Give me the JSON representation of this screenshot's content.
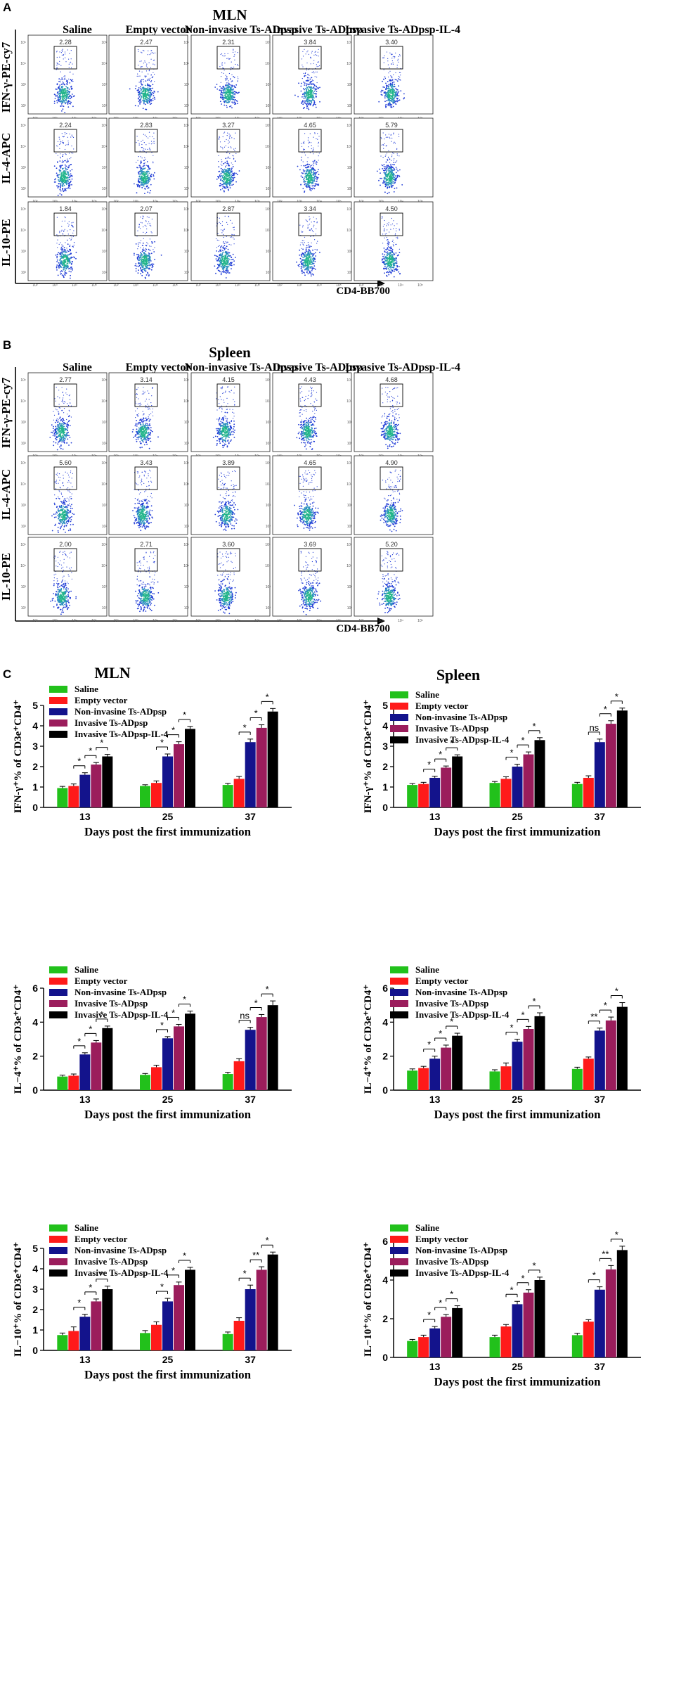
{
  "colors": {
    "saline": "#22c11b",
    "empty_vector": "#ff1a1a",
    "non_invasive": "#13138c",
    "invasive": "#9b1d5c",
    "invasive_il4": "#000000",
    "dot_core": "#22b58a",
    "dot_edge": "#1f3bd6"
  },
  "flow": {
    "A": {
      "panel_label": "A",
      "title": "MLN",
      "columns": [
        "Saline",
        "Empty vector",
        "Non-invasive Ts-ADpsp",
        "Invasive Ts-ADpsp",
        "Invasive Ts-ADpsp-IL-4"
      ],
      "rows": [
        "IFN-γ-PE-cy7",
        "IL-4-APC",
        "IL-10-PE"
      ],
      "x_axis_label": "CD4-BB700",
      "gate_values": [
        [
          "2.28",
          "2.47",
          "2.31",
          "3.84",
          "3.40"
        ],
        [
          "2.24",
          "2.83",
          "3.27",
          "4.65",
          "5.79"
        ],
        [
          "1.84",
          "2.07",
          "2.87",
          "3.34",
          "4.50"
        ]
      ]
    },
    "B": {
      "panel_label": "B",
      "title": "Spleen",
      "columns": [
        "Saline",
        "Empty vector",
        "Non-invasive Ts-ADpsp",
        "Invasive Ts-ADpsp",
        "Invasive Ts-ADpsp-IL-4"
      ],
      "rows": [
        "IFN-γ-PE-cy7",
        "IL-4-APC",
        "IL-10-PE"
      ],
      "x_axis_label": "CD4-BB700",
      "gate_values": [
        [
          "2.77",
          "3.14",
          "4.15",
          "4.43",
          "4.68"
        ],
        [
          "5.60",
          "3.43",
          "3.89",
          "4.65",
          "4.90"
        ],
        [
          "2.00",
          "2.71",
          "3.60",
          "3.69",
          "5.20"
        ]
      ]
    },
    "tick_labels": [
      "10²",
      "10³",
      "10⁴",
      "10⁵"
    ]
  },
  "panel_c": {
    "panel_label": "C",
    "titles": [
      "MLN",
      "Spleen"
    ],
    "legend": [
      "Saline",
      "Empty vector",
      "Non-invasine Ts-ADpsp",
      "Invasive Ts-ADpsp",
      "Invasive Ts-ADpsp-IL-4"
    ]
  },
  "chart_data": [
    {
      "type": "bar",
      "id": "mln-ifn",
      "title": "MLN",
      "categories": [
        "13",
        "25",
        "37"
      ],
      "xlabel": "Days post the first immunization",
      "ylabel": "IFN-γ⁺% of CD3e⁺CD4⁺",
      "ylim": [
        0,
        5
      ],
      "yticks": [
        "0",
        "1",
        "2",
        "3",
        "4",
        "5"
      ],
      "series": [
        {
          "name": "Saline",
          "values": [
            0.95,
            1.05,
            1.1
          ],
          "errors": [
            0.08,
            0.06,
            0.08
          ]
        },
        {
          "name": "Empty vector",
          "values": [
            1.05,
            1.2,
            1.4
          ],
          "errors": [
            0.1,
            0.1,
            0.12
          ]
        },
        {
          "name": "Non-invasine Ts-ADpsp",
          "values": [
            1.6,
            2.5,
            3.2
          ],
          "errors": [
            0.1,
            0.12,
            0.15
          ]
        },
        {
          "name": "Invasive Ts-ADpsp",
          "values": [
            2.1,
            3.1,
            3.9
          ],
          "errors": [
            0.1,
            0.12,
            0.15
          ]
        },
        {
          "name": "Invasive Ts-ADpsp-IL-4",
          "values": [
            2.5,
            3.85,
            4.7
          ],
          "errors": [
            0.1,
            0.12,
            0.15
          ]
        }
      ],
      "significance": [
        [
          "*",
          "*",
          "*"
        ],
        [
          "*",
          "*",
          "*"
        ],
        [
          "*",
          "*",
          "*"
        ]
      ]
    },
    {
      "type": "bar",
      "id": "spleen-ifn",
      "title": "Spleen",
      "categories": [
        "13",
        "25",
        "37"
      ],
      "xlabel": "Days post the first immunization",
      "ylabel": "IFN-γ⁺% of CD3e⁺CD4⁺",
      "ylim": [
        0,
        5
      ],
      "yticks": [
        "0",
        "1",
        "2",
        "3",
        "4",
        "5"
      ],
      "series": [
        {
          "name": "Saline",
          "values": [
            1.1,
            1.2,
            1.15
          ],
          "errors": [
            0.07,
            0.07,
            0.08
          ]
        },
        {
          "name": "Empty vector",
          "values": [
            1.15,
            1.4,
            1.45
          ],
          "errors": [
            0.08,
            0.1,
            0.1
          ]
        },
        {
          "name": "Non-invasine Ts-ADpsp",
          "values": [
            1.45,
            2.0,
            3.2
          ],
          "errors": [
            0.08,
            0.12,
            0.15
          ]
        },
        {
          "name": "Invasive Ts-ADpsp",
          "values": [
            1.95,
            2.6,
            4.1
          ],
          "errors": [
            0.08,
            0.12,
            0.15
          ]
        },
        {
          "name": "Invasive Ts-ADpsp-IL-4",
          "values": [
            2.5,
            3.3,
            4.75
          ],
          "errors": [
            0.08,
            0.12,
            0.12
          ]
        }
      ],
      "significance": [
        [
          "*",
          "*",
          "*"
        ],
        [
          "*",
          "*",
          "*"
        ],
        [
          "ns",
          "*",
          "*"
        ]
      ]
    },
    {
      "type": "bar",
      "id": "mln-il4",
      "title": "",
      "categories": [
        "13",
        "25",
        "37"
      ],
      "xlabel": "Days post the first immunization",
      "ylabel": "IL−4⁺% of CD3e⁺CD4⁺",
      "ylim": [
        0,
        6
      ],
      "yticks": [
        "0",
        "2",
        "4",
        "6"
      ],
      "series": [
        {
          "name": "Saline",
          "values": [
            0.8,
            0.9,
            0.95
          ],
          "errors": [
            0.08,
            0.08,
            0.1
          ]
        },
        {
          "name": "Empty vector",
          "values": [
            0.85,
            1.35,
            1.7
          ],
          "errors": [
            0.1,
            0.12,
            0.15
          ]
        },
        {
          "name": "Non-invasine Ts-ADpsp",
          "values": [
            2.1,
            3.05,
            3.55
          ],
          "errors": [
            0.1,
            0.1,
            0.15
          ]
        },
        {
          "name": "Invasive Ts-ADpsp",
          "values": [
            2.8,
            3.75,
            4.3
          ],
          "errors": [
            0.12,
            0.12,
            0.15
          ]
        },
        {
          "name": "Invasive Ts-ADpsp-IL-4",
          "values": [
            3.65,
            4.5,
            5.0
          ],
          "errors": [
            0.12,
            0.15,
            0.25
          ]
        }
      ],
      "significance": [
        [
          "*",
          "*",
          "*"
        ],
        [
          "*",
          "*",
          "*"
        ],
        [
          "ns",
          "*",
          "*"
        ]
      ]
    },
    {
      "type": "bar",
      "id": "spleen-il4",
      "title": "",
      "categories": [
        "13",
        "25",
        "37"
      ],
      "xlabel": "Days post the first immunization",
      "ylabel": "IL−4⁺% of CD3e⁺CD4⁺",
      "ylim": [
        0,
        6
      ],
      "yticks": [
        "0",
        "2",
        "4",
        "6"
      ],
      "series": [
        {
          "name": "Saline",
          "values": [
            1.15,
            1.1,
            1.25
          ],
          "errors": [
            0.1,
            0.1,
            0.1
          ]
        },
        {
          "name": "Empty vector",
          "values": [
            1.3,
            1.4,
            1.85
          ],
          "errors": [
            0.1,
            0.2,
            0.1
          ]
        },
        {
          "name": "Non-invasine Ts-ADpsp",
          "values": [
            1.85,
            2.85,
            3.5
          ],
          "errors": [
            0.15,
            0.15,
            0.15
          ]
        },
        {
          "name": "Invasive Ts-ADpsp",
          "values": [
            2.5,
            3.6,
            4.1
          ],
          "errors": [
            0.15,
            0.15,
            0.2
          ]
        },
        {
          "name": "Invasive Ts-ADpsp-IL-4",
          "values": [
            3.2,
            4.35,
            4.9
          ],
          "errors": [
            0.15,
            0.2,
            0.25
          ]
        }
      ],
      "significance": [
        [
          "*",
          "*",
          "*"
        ],
        [
          "*",
          "*",
          "*"
        ],
        [
          "**",
          "*",
          "*"
        ]
      ]
    },
    {
      "type": "bar",
      "id": "mln-il10",
      "title": "",
      "categories": [
        "13",
        "25",
        "37"
      ],
      "xlabel": "Days post the first immunization",
      "ylabel": "IL−10⁺% of CD3e⁺CD4⁺",
      "ylim": [
        0,
        5
      ],
      "yticks": [
        "0",
        "1",
        "2",
        "3",
        "4",
        "5"
      ],
      "series": [
        {
          "name": "Saline",
          "values": [
            0.75,
            0.85,
            0.8
          ],
          "errors": [
            0.1,
            0.12,
            0.1
          ]
        },
        {
          "name": "Empty vector",
          "values": [
            0.95,
            1.25,
            1.45
          ],
          "errors": [
            0.2,
            0.15,
            0.15
          ]
        },
        {
          "name": "Non-invasine Ts-ADpsp",
          "values": [
            1.65,
            2.4,
            3.0
          ],
          "errors": [
            0.12,
            0.15,
            0.2
          ]
        },
        {
          "name": "Invasive Ts-ADpsp",
          "values": [
            2.4,
            3.2,
            3.95
          ],
          "errors": [
            0.12,
            0.15,
            0.15
          ]
        },
        {
          "name": "Invasive Ts-ADpsp-IL-4",
          "values": [
            3.0,
            3.95,
            4.7
          ],
          "errors": [
            0.15,
            0.12,
            0.12
          ]
        }
      ],
      "significance": [
        [
          "*",
          "*",
          "*"
        ],
        [
          "*",
          "*",
          "*"
        ],
        [
          "*",
          "**",
          "*"
        ]
      ]
    },
    {
      "type": "bar",
      "id": "spleen-il10",
      "title": "",
      "categories": [
        "13",
        "25",
        "37"
      ],
      "xlabel": "Days post the first immunization",
      "ylabel": "IL−10⁺% of CD3e⁺CD4⁺",
      "ylim": [
        0,
        6
      ],
      "yticks": [
        "0",
        "2",
        "4",
        "6"
      ],
      "series": [
        {
          "name": "Saline",
          "values": [
            0.85,
            1.05,
            1.15
          ],
          "errors": [
            0.08,
            0.1,
            0.1
          ]
        },
        {
          "name": "Empty vector",
          "values": [
            1.05,
            1.6,
            1.85
          ],
          "errors": [
            0.1,
            0.1,
            0.1
          ]
        },
        {
          "name": "Non-invasine Ts-ADpsp",
          "values": [
            1.5,
            2.75,
            3.5
          ],
          "errors": [
            0.1,
            0.15,
            0.15
          ]
        },
        {
          "name": "Invasive Ts-ADpsp",
          "values": [
            2.1,
            3.35,
            4.55
          ],
          "errors": [
            0.12,
            0.15,
            0.2
          ]
        },
        {
          "name": "Invasive Ts-ADpsp-IL-4",
          "values": [
            2.55,
            4.0,
            5.55
          ],
          "errors": [
            0.12,
            0.15,
            0.2
          ]
        }
      ],
      "significance": [
        [
          "*",
          "*",
          "*"
        ],
        [
          "*",
          "*",
          "*"
        ],
        [
          "*",
          "**",
          "*"
        ]
      ]
    }
  ]
}
